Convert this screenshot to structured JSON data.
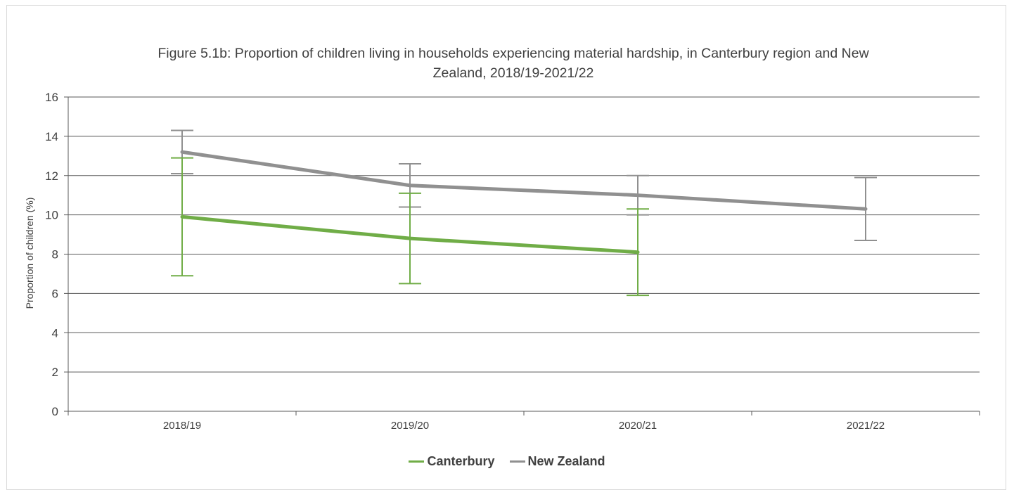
{
  "chart_data": {
    "type": "line",
    "title_line1": "Figure 5.1b: Proportion of children living in households experiencing material hardship, in Canterbury region and New",
    "title_line2": "Zealand, 2018/19-2021/22",
    "xlabel": "",
    "ylabel": "Proportion of children (%)",
    "ylim": [
      0,
      16
    ],
    "yticks": [
      0,
      2,
      4,
      6,
      8,
      10,
      12,
      14,
      16
    ],
    "categories": [
      "2018/19",
      "2019/20",
      "2020/21",
      "2021/22"
    ],
    "grid": "horizontal",
    "legend_position": "bottom",
    "series": [
      {
        "name": "Canterbury",
        "color": "#70ad47",
        "values": [
          9.9,
          8.8,
          8.1,
          null
        ],
        "error_low": [
          6.9,
          6.5,
          5.9,
          null
        ],
        "error_high": [
          12.9,
          11.1,
          10.3,
          null
        ]
      },
      {
        "name": "New Zealand",
        "color": "#909090",
        "values": [
          13.2,
          11.5,
          11.0,
          10.3
        ],
        "error_low": [
          12.1,
          10.4,
          10.0,
          8.7
        ],
        "error_high": [
          14.3,
          12.6,
          12.0,
          11.9
        ]
      }
    ]
  }
}
